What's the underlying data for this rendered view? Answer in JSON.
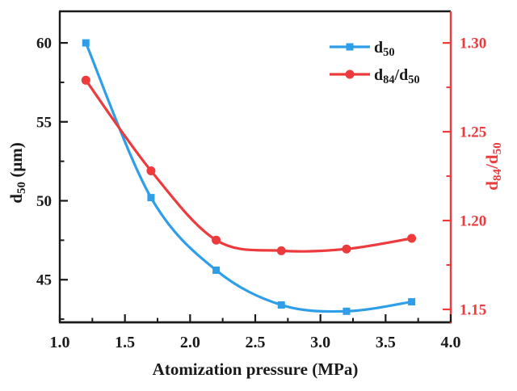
{
  "colors": {
    "blue": "#2f9ee8",
    "red": "#ec3a3d",
    "axis": "#1a1a1a",
    "background": "#ffffff"
  },
  "chart_data": {
    "type": "line",
    "title": "",
    "xlabel": "Atomization pressure (MPa)",
    "xlabel_segments": [
      {
        "t": "Atomization pressure (MPa)"
      }
    ],
    "ylabel_left": "d50 (um)",
    "ylabel_left_segments": [
      {
        "t": "d"
      },
      {
        "t": "50",
        "sub": true
      },
      {
        "t": " (μm)"
      }
    ],
    "ylabel_right": "d84/d50",
    "ylabel_right_segments": [
      {
        "t": "d"
      },
      {
        "t": "84",
        "sub": true
      },
      {
        "t": "/d"
      },
      {
        "t": "50",
        "sub": true
      }
    ],
    "grid": false,
    "legend_position": "upper-right-inside",
    "x_axis": {
      "range": [
        1.0,
        4.0
      ],
      "major_ticks": [
        1.0,
        1.5,
        2.0,
        2.5,
        3.0,
        3.5,
        4.0
      ],
      "tick_labels": [
        "1.0",
        "1.5",
        "2.0",
        "2.5",
        "3.0",
        "3.5",
        "4.0"
      ],
      "minor_ticks": [
        1.25,
        1.75,
        2.25,
        2.75,
        3.25,
        3.75
      ]
    },
    "y_axis_left": {
      "range": [
        42.3,
        62.0
      ],
      "major_ticks": [
        45,
        50,
        55,
        60
      ],
      "tick_labels": [
        "45",
        "50",
        "55",
        "60"
      ],
      "minor_ticks": [
        42.5,
        47.5,
        52.5,
        57.5
      ]
    },
    "y_axis_right": {
      "range": [
        1.1427,
        1.3178
      ],
      "major_ticks": [
        1.15,
        1.2,
        1.25,
        1.3
      ],
      "tick_labels": [
        "1.15",
        "1.20",
        "1.25",
        "1.30"
      ],
      "minor_ticks": [
        1.175,
        1.225,
        1.275
      ]
    },
    "x": [
      1.2,
      1.7,
      2.2,
      2.7,
      3.2,
      3.7
    ],
    "series": [
      {
        "name": "d50",
        "axis": "left",
        "color": "blue",
        "marker": "square",
        "values": [
          60.0,
          50.2,
          45.6,
          43.4,
          43.0,
          43.6
        ],
        "label_segments": [
          {
            "t": "d"
          },
          {
            "t": "50",
            "sub": true
          }
        ]
      },
      {
        "name": "d84/d50",
        "axis": "right",
        "color": "red",
        "marker": "circle",
        "values": [
          1.279,
          1.228,
          1.189,
          1.183,
          1.184,
          1.19
        ],
        "label_segments": [
          {
            "t": "d"
          },
          {
            "t": "84",
            "sub": true
          },
          {
            "t": "/d"
          },
          {
            "t": "50",
            "sub": true
          }
        ]
      }
    ]
  }
}
